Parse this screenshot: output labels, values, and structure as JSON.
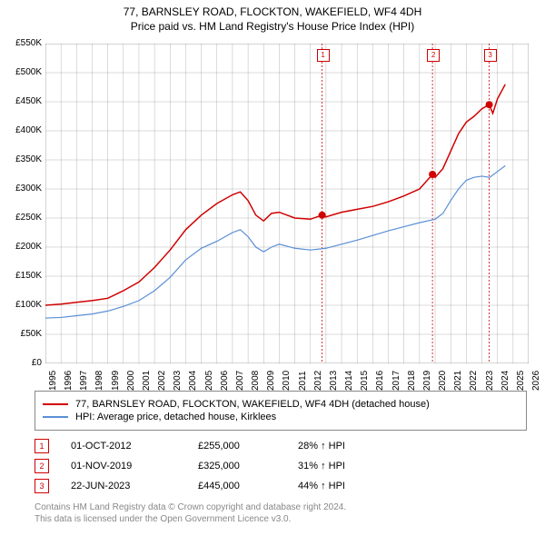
{
  "title_line1": "77, BARNSLEY ROAD, FLOCKTON, WAKEFIELD, WF4 4DH",
  "title_line2": "Price paid vs. HM Land Registry's House Price Index (HPI)",
  "chart": {
    "type": "line",
    "background_color": "#ffffff",
    "grid_color": "#aaaaaa",
    "xlim": [
      1995,
      2026
    ],
    "ylim": [
      0,
      550000
    ],
    "ytick_step": 50000,
    "ytick_labels": [
      "£0",
      "£50K",
      "£100K",
      "£150K",
      "£200K",
      "£250K",
      "£300K",
      "£350K",
      "£400K",
      "£450K",
      "£500K",
      "£550K"
    ],
    "xtick_step": 1,
    "xtick_labels": [
      "1995",
      "1996",
      "1997",
      "1998",
      "1999",
      "2000",
      "2001",
      "2002",
      "2003",
      "2004",
      "2005",
      "2006",
      "2007",
      "2008",
      "2009",
      "2010",
      "2011",
      "2012",
      "2013",
      "2014",
      "2015",
      "2016",
      "2017",
      "2018",
      "2019",
      "2020",
      "2021",
      "2022",
      "2023",
      "2024",
      "2025",
      "2026"
    ],
    "series": [
      {
        "name": "77, BARNSLEY ROAD, FLOCKTON, WAKEFIELD, WF4 4DH (detached house)",
        "color": "#d00000",
        "line_width": 1.5,
        "data": [
          [
            1995,
            100000
          ],
          [
            1996,
            102000
          ],
          [
            1997,
            105000
          ],
          [
            1998,
            108000
          ],
          [
            1999,
            112000
          ],
          [
            2000,
            125000
          ],
          [
            2001,
            140000
          ],
          [
            2002,
            165000
          ],
          [
            2003,
            195000
          ],
          [
            2004,
            230000
          ],
          [
            2005,
            255000
          ],
          [
            2006,
            275000
          ],
          [
            2007,
            290000
          ],
          [
            2007.5,
            295000
          ],
          [
            2008,
            280000
          ],
          [
            2008.5,
            255000
          ],
          [
            2009,
            245000
          ],
          [
            2009.5,
            258000
          ],
          [
            2010,
            260000
          ],
          [
            2010.5,
            255000
          ],
          [
            2011,
            250000
          ],
          [
            2012,
            248000
          ],
          [
            2012.75,
            255000
          ],
          [
            2013,
            252000
          ],
          [
            2014,
            260000
          ],
          [
            2015,
            265000
          ],
          [
            2016,
            270000
          ],
          [
            2017,
            278000
          ],
          [
            2018,
            288000
          ],
          [
            2019,
            300000
          ],
          [
            2019.83,
            325000
          ],
          [
            2020,
            320000
          ],
          [
            2020.5,
            335000
          ],
          [
            2021,
            365000
          ],
          [
            2021.5,
            395000
          ],
          [
            2022,
            415000
          ],
          [
            2022.5,
            425000
          ],
          [
            2023,
            438000
          ],
          [
            2023.47,
            445000
          ],
          [
            2023.7,
            430000
          ],
          [
            2024,
            455000
          ],
          [
            2024.5,
            480000
          ]
        ]
      },
      {
        "name": "HPI: Average price, detached house, Kirklees",
        "color": "#5a8fd6",
        "line_width": 1.2,
        "data": [
          [
            1995,
            78000
          ],
          [
            1996,
            79000
          ],
          [
            1997,
            82000
          ],
          [
            1998,
            85000
          ],
          [
            1999,
            90000
          ],
          [
            2000,
            98000
          ],
          [
            2001,
            108000
          ],
          [
            2002,
            125000
          ],
          [
            2003,
            148000
          ],
          [
            2004,
            178000
          ],
          [
            2005,
            198000
          ],
          [
            2006,
            210000
          ],
          [
            2007,
            225000
          ],
          [
            2007.5,
            230000
          ],
          [
            2008,
            218000
          ],
          [
            2008.5,
            200000
          ],
          [
            2009,
            192000
          ],
          [
            2009.5,
            200000
          ],
          [
            2010,
            205000
          ],
          [
            2011,
            198000
          ],
          [
            2012,
            195000
          ],
          [
            2013,
            198000
          ],
          [
            2014,
            205000
          ],
          [
            2015,
            212000
          ],
          [
            2016,
            220000
          ],
          [
            2017,
            228000
          ],
          [
            2018,
            235000
          ],
          [
            2019,
            242000
          ],
          [
            2020,
            248000
          ],
          [
            2020.5,
            258000
          ],
          [
            2021,
            280000
          ],
          [
            2021.5,
            300000
          ],
          [
            2022,
            315000
          ],
          [
            2022.5,
            320000
          ],
          [
            2023,
            322000
          ],
          [
            2023.5,
            320000
          ],
          [
            2024,
            330000
          ],
          [
            2024.5,
            340000
          ]
        ]
      }
    ],
    "points": [
      {
        "x": 2012.75,
        "y": 255000,
        "color": "#d00000",
        "radius": 4
      },
      {
        "x": 2019.83,
        "y": 325000,
        "color": "#d00000",
        "radius": 4
      },
      {
        "x": 2023.47,
        "y": 445000,
        "color": "#d00000",
        "radius": 4
      }
    ],
    "vlines": [
      {
        "x": 2012.75,
        "color": "#d00000",
        "dash": "2,2"
      },
      {
        "x": 2019.83,
        "color": "#d00000",
        "dash": "2,2"
      },
      {
        "x": 2023.47,
        "color": "#d00000",
        "dash": "2,2"
      }
    ],
    "marker_labels": [
      {
        "x": 2012.75,
        "label": "1"
      },
      {
        "x": 2019.83,
        "label": "2"
      },
      {
        "x": 2023.47,
        "label": "3"
      }
    ]
  },
  "legend": {
    "items": [
      {
        "color": "#d00000",
        "label": "77, BARNSLEY ROAD, FLOCKTON, WAKEFIELD, WF4 4DH (detached house)"
      },
      {
        "color": "#5a8fd6",
        "label": "HPI: Average price, detached house, Kirklees"
      }
    ]
  },
  "sales": [
    {
      "marker": "1",
      "date": "01-OCT-2012",
      "price": "£255,000",
      "pct": "28% ↑ HPI"
    },
    {
      "marker": "2",
      "date": "01-NOV-2019",
      "price": "£325,000",
      "pct": "31% ↑ HPI"
    },
    {
      "marker": "3",
      "date": "22-JUN-2023",
      "price": "£445,000",
      "pct": "44% ↑ HPI"
    }
  ],
  "footer_line1": "Contains HM Land Registry data © Crown copyright and database right 2024.",
  "footer_line2": "This data is licensed under the Open Government Licence v3.0."
}
